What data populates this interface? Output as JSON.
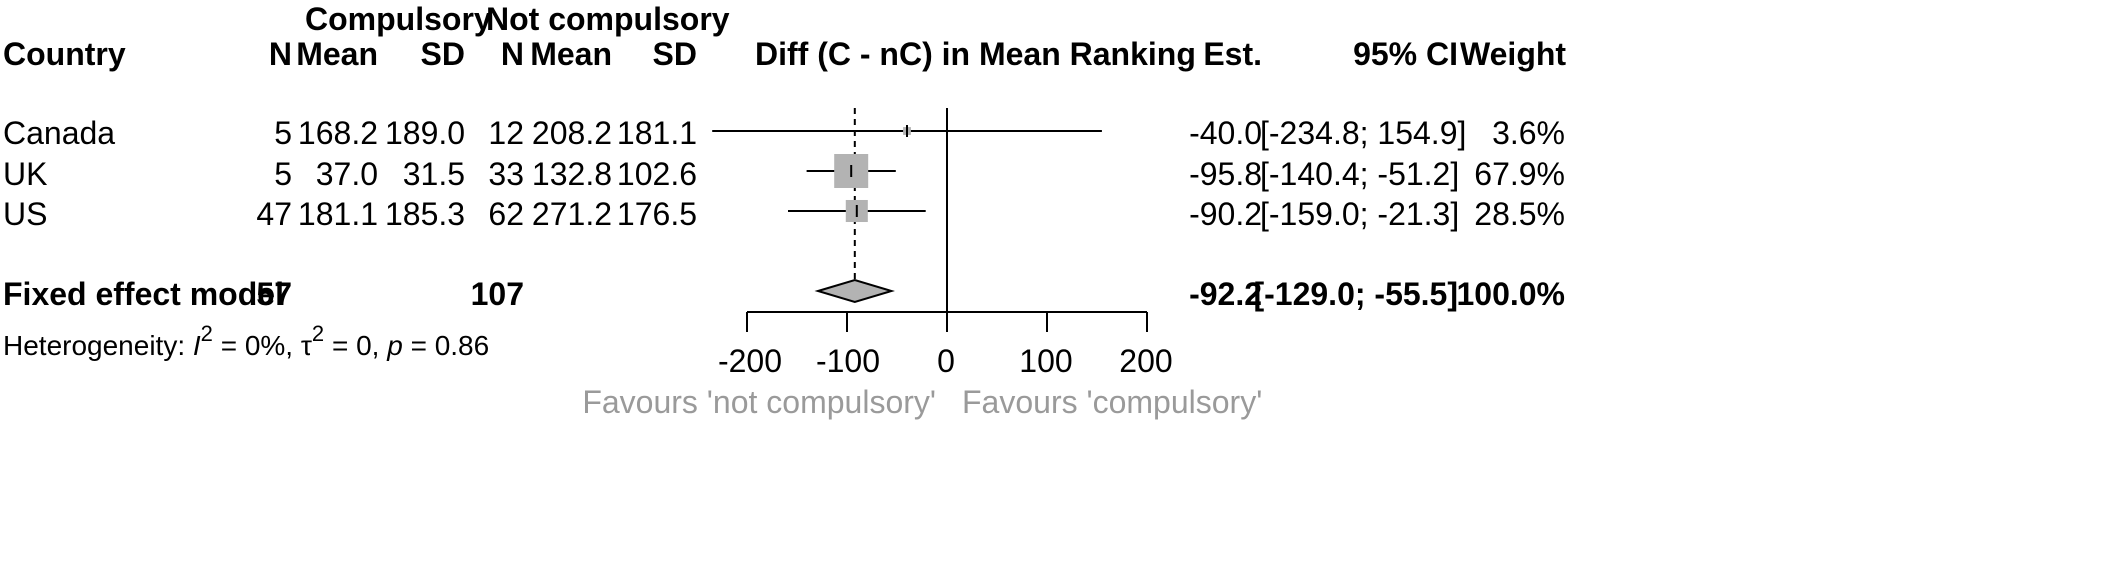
{
  "header": {
    "compulsory": "Compulsory",
    "not_compulsory": "Not compulsory",
    "country": "Country",
    "n": "N",
    "mean": "Mean",
    "sd": "SD",
    "diff": "Diff (C - nC) in Mean Ranking",
    "est": "Est.",
    "ci": "95% CI",
    "weight": "Weight"
  },
  "rows": [
    {
      "country": "Canada",
      "c_n": "5",
      "c_mean": "168.2",
      "c_sd": "189.0",
      "nc_n": "12",
      "nc_mean": "208.2",
      "nc_sd": "181.1",
      "est": "-40.0",
      "ci": "[-234.8; 154.9]",
      "weight": "3.6%"
    },
    {
      "country": "UK",
      "c_n": "5",
      "c_mean": "37.0",
      "c_sd": "31.5",
      "nc_n": "33",
      "nc_mean": "132.8",
      "nc_sd": "102.6",
      "est": "-95.8",
      "ci": "[-140.4; -51.2]",
      "weight": "67.9%"
    },
    {
      "country": "US",
      "c_n": "47",
      "c_mean": "181.1",
      "c_sd": "185.3",
      "nc_n": "62",
      "nc_mean": "271.2",
      "nc_sd": "176.5",
      "est": "-90.2",
      "ci": "[-159.0; -21.3]",
      "weight": "28.5%"
    }
  ],
  "summary": {
    "label": "Fixed effect model",
    "c_n": "57",
    "nc_n": "107",
    "est": "-92.2",
    "ci": "[-129.0; -55.5]",
    "weight": "100.0%"
  },
  "heterogeneity": {
    "prefix": "Heterogeneity: ",
    "i2_sym": "I",
    "i2_sup": "2",
    "i2_val": " = 0%, ",
    "tau_sym": "τ",
    "tau_sup": "2",
    "tau_val": " = 0, ",
    "p_sym": "p",
    "p_val": " = 0.86"
  },
  "favours": {
    "left": "Favours 'not compulsory'",
    "right": "Favours 'compulsory'"
  },
  "colors": {
    "box": "#b3b3b3",
    "diamond": "#b3b3b3",
    "line": "#000000",
    "favours_text": "#9a9a9a"
  },
  "chart_data": {
    "type": "forest",
    "xlim": [
      -200,
      200
    ],
    "ticks": [
      -200,
      -100,
      0,
      100,
      200
    ],
    "tick_labels": [
      "-200",
      "-100",
      "0",
      "100",
      "200"
    ],
    "reference_line": 0,
    "pooled_estimate_line": -92.2,
    "studies": [
      {
        "label": "Canada",
        "est": -40.0,
        "lower": -234.8,
        "upper": 154.9,
        "weight": 3.6
      },
      {
        "label": "UK",
        "est": -95.8,
        "lower": -140.4,
        "upper": -51.2,
        "weight": 67.9
      },
      {
        "label": "US",
        "est": -90.2,
        "lower": -159.0,
        "upper": -21.3,
        "weight": 28.5
      }
    ],
    "pooled": {
      "label": "Fixed effect model",
      "est": -92.2,
      "lower": -129.0,
      "upper": -55.5
    }
  }
}
